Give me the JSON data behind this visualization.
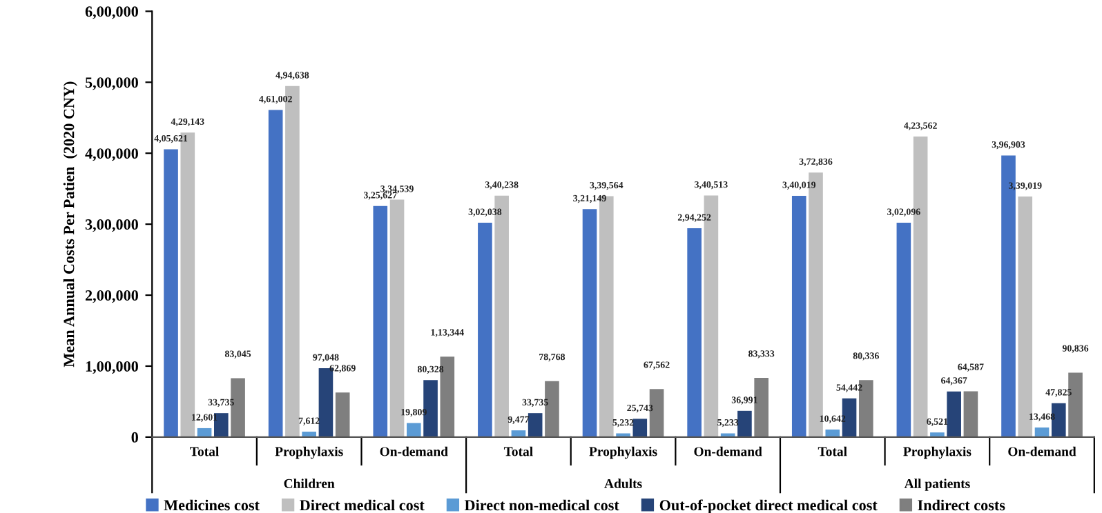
{
  "chart_data": {
    "type": "bar",
    "ylabel": "Mean Annual Costs Per Patien  (2020 CNY)",
    "categories": [
      "Total",
      "Prophylaxis",
      "On-demand",
      "Total",
      "Prophylaxis",
      "On-demand",
      "Total",
      "Prophylaxis",
      "On-demand"
    ],
    "annotations": [
      "Children",
      "Adults",
      "All patients"
    ],
    "ylim": [
      0,
      600000
    ],
    "yticks": [
      0,
      {
        "value": 100000,
        "label": "1,00,000"
      },
      {
        "value": 200000,
        "label": "2,00,000"
      },
      {
        "value": 300000,
        "label": "3,00,000"
      },
      {
        "value": 400000,
        "label": "4,00,000"
      },
      {
        "value": 500000,
        "label": "5,00,000"
      },
      {
        "value": 600000,
        "label": "6,00,000"
      }
    ],
    "grid": false,
    "legend": "bottom",
    "series": [
      {
        "name": "Medicines cost",
        "color": "#4472c4",
        "values": [
          405621,
          461002,
          325627,
          302038,
          321149,
          294252,
          340019,
          302096,
          396903
        ],
        "value_labels": [
          "4,05,621",
          "4,61,002",
          "3,25,627",
          "3,02,038",
          "3,21,149",
          "2,94,252",
          "3,40,019",
          "3,02,096",
          "3,96,903"
        ]
      },
      {
        "name": "Direct medical cost",
        "color": "#bfbfbf",
        "values": [
          429143,
          494638,
          334539,
          340238,
          339564,
          340513,
          372836,
          423562,
          339019
        ],
        "value_labels": [
          "4,29,143",
          "4,94,638",
          "3,34,539",
          "3,40,238",
          "3,39,564",
          "3,40,513",
          "3,72,836",
          "4,23,562",
          "3,39,019"
        ]
      },
      {
        "name": "Direct non-medical cost",
        "color": "#5b9bd5",
        "values": [
          12601,
          7612,
          19809,
          9477,
          5232,
          5233,
          10642,
          6521,
          13468
        ],
        "value_labels": [
          "12,601",
          "7,612",
          "19,809",
          "9,477",
          "5,232",
          "5,233",
          "10,642",
          "6,521",
          "13,468"
        ]
      },
      {
        "name": "Out-of-pocket direct medical cost",
        "color": "#264478",
        "values": [
          33735,
          97048,
          80328,
          33735,
          25743,
          36991,
          54442,
          64367,
          47825
        ],
        "value_labels": [
          "33,735",
          "97,048",
          "80,328",
          "33,735",
          "25,743",
          "36,991",
          "54,442",
          "64,367",
          "47,825"
        ]
      },
      {
        "name": "Indirect costs",
        "color": "#7f7f7f",
        "values": [
          83045,
          62869,
          113344,
          78768,
          67562,
          83333,
          80336,
          64587,
          90836
        ],
        "value_labels": [
          "83,045",
          "62,869",
          "1,13,344",
          "78,768",
          "67,562",
          "83,333",
          "80,336",
          "64,587",
          "90,836"
        ]
      }
    ]
  }
}
